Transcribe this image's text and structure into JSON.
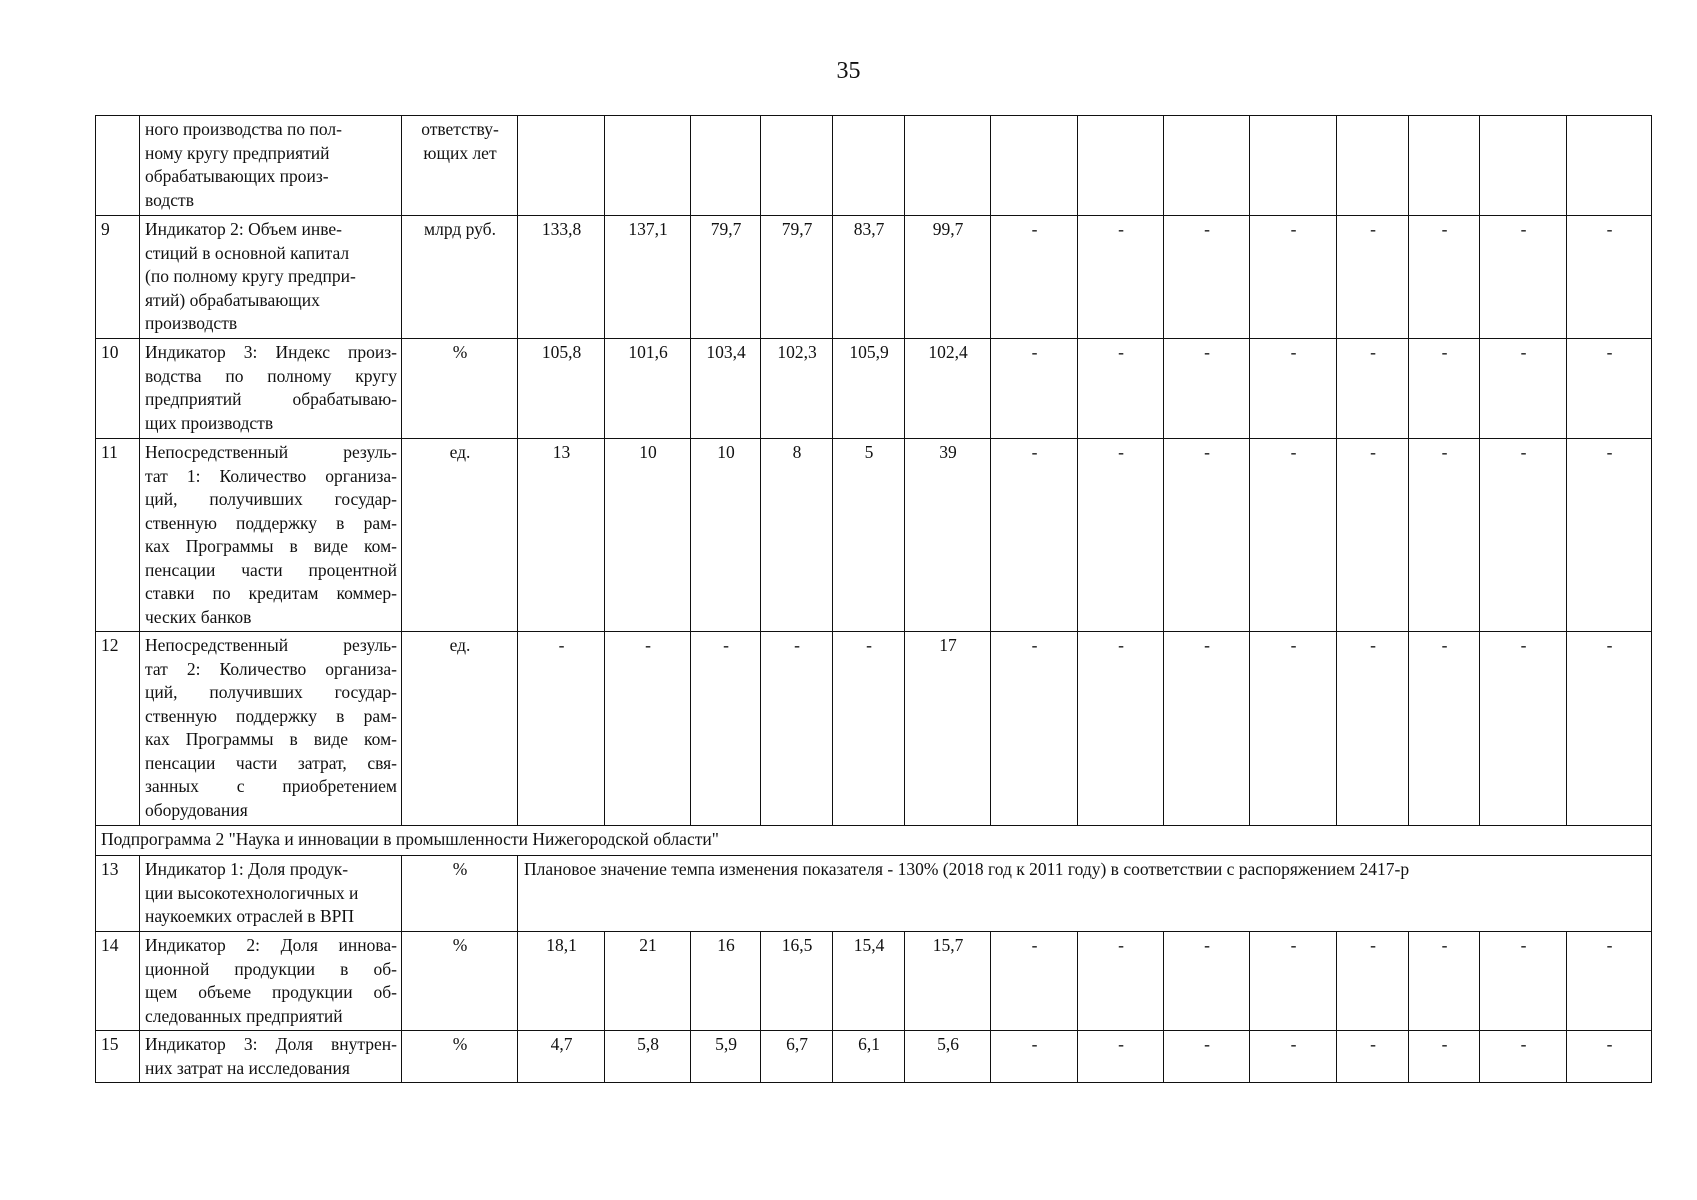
{
  "page_number": "35",
  "table": {
    "rows": [
      {
        "type": "row",
        "num": "",
        "justify": false,
        "desc": [
          "ного производства по пол-",
          "ному кругу предприятий",
          "обрабатывающих произ-",
          "водств"
        ],
        "unit": [
          "ответству-",
          "ющих лет"
        ],
        "values": [
          "",
          "",
          "",
          "",
          "",
          "",
          "",
          "",
          "",
          "",
          "",
          "",
          "",
          ""
        ]
      },
      {
        "type": "row",
        "num": "9",
        "justify": false,
        "desc": [
          "Индикатор 2: Объем инве-",
          "стиций в основной капитал",
          "(по полному кругу предпри-",
          "ятий) обрабатывающих",
          "производств"
        ],
        "unit": [
          "млрд руб."
        ],
        "values": [
          "133,8",
          "137,1",
          "79,7",
          "79,7",
          "83,7",
          "99,7",
          "-",
          "-",
          "-",
          "-",
          "-",
          "-",
          "-",
          "-"
        ]
      },
      {
        "type": "row",
        "num": "10",
        "justify": true,
        "desc": [
          "Индикатор 3: Индекс произ-",
          "водства по полному кругу",
          "предприятий обрабатываю-",
          "щих производств"
        ],
        "unit": [
          "%"
        ],
        "values": [
          "105,8",
          "101,6",
          "103,4",
          "102,3",
          "105,9",
          "102,4",
          "-",
          "-",
          "-",
          "-",
          "-",
          "-",
          "-",
          "-"
        ]
      },
      {
        "type": "row",
        "num": "11",
        "justify": true,
        "desc": [
          "Непосредственный резуль-",
          "тат 1: Количество организа-",
          "ций, получивших государ-",
          "ственную поддержку в рам-",
          "ках Программы в виде ком-",
          "пенсации части процентной",
          "ставки по кредитам коммер-",
          "ческих банков"
        ],
        "unit": [
          "ед."
        ],
        "values": [
          "13",
          "10",
          "10",
          "8",
          "5",
          "39",
          "-",
          "-",
          "-",
          "-",
          "-",
          "-",
          "-",
          "-"
        ]
      },
      {
        "type": "row",
        "num": "12",
        "justify": true,
        "desc": [
          "Непосредственный резуль-",
          "тат 2: Количество организа-",
          "ций, получивших государ-",
          "ственную поддержку в рам-",
          "ках Программы в виде ком-",
          "пенсации части затрат, свя-",
          "занных с приобретением",
          "оборудования"
        ],
        "unit": [
          "ед."
        ],
        "values": [
          "-",
          "-",
          "-",
          "-",
          "-",
          "17",
          "-",
          "-",
          "-",
          "-",
          "-",
          "-",
          "-",
          "-"
        ]
      },
      {
        "type": "section",
        "text": "Подпрограмма 2 \"Наука и инновации в промышленности Нижегородской области\""
      },
      {
        "type": "note",
        "num": "13",
        "justify": false,
        "desc": [
          "Индикатор 1: Доля продук-",
          "ции высокотехнологичных и",
          "наукоемких отраслей в ВРП"
        ],
        "unit": [
          "%"
        ],
        "note": "Плановое значение темпа изменения показателя - 130% (2018 год к 2011 году) в соответствии с распоряжением 2417-р"
      },
      {
        "type": "row",
        "num": "14",
        "justify": true,
        "desc": [
          "Индикатор 2: Доля иннова-",
          "ционной продукции в об-",
          "щем объеме продукции об-",
          "следованных предприятий"
        ],
        "unit": [
          "%"
        ],
        "values": [
          "18,1",
          "21",
          "16",
          "16,5",
          "15,4",
          "15,7",
          "-",
          "-",
          "-",
          "-",
          "-",
          "-",
          "-",
          "-"
        ]
      },
      {
        "type": "row",
        "num": "15",
        "justify": true,
        "desc": [
          "Индикатор 3: Доля внутрен-",
          "них затрат на исследования"
        ],
        "unit": [
          "%"
        ],
        "values": [
          "4,7",
          "5,8",
          "5,9",
          "6,7",
          "6,1",
          "5,6",
          "-",
          "-",
          "-",
          "-",
          "-",
          "-",
          "-",
          "-"
        ]
      }
    ]
  }
}
